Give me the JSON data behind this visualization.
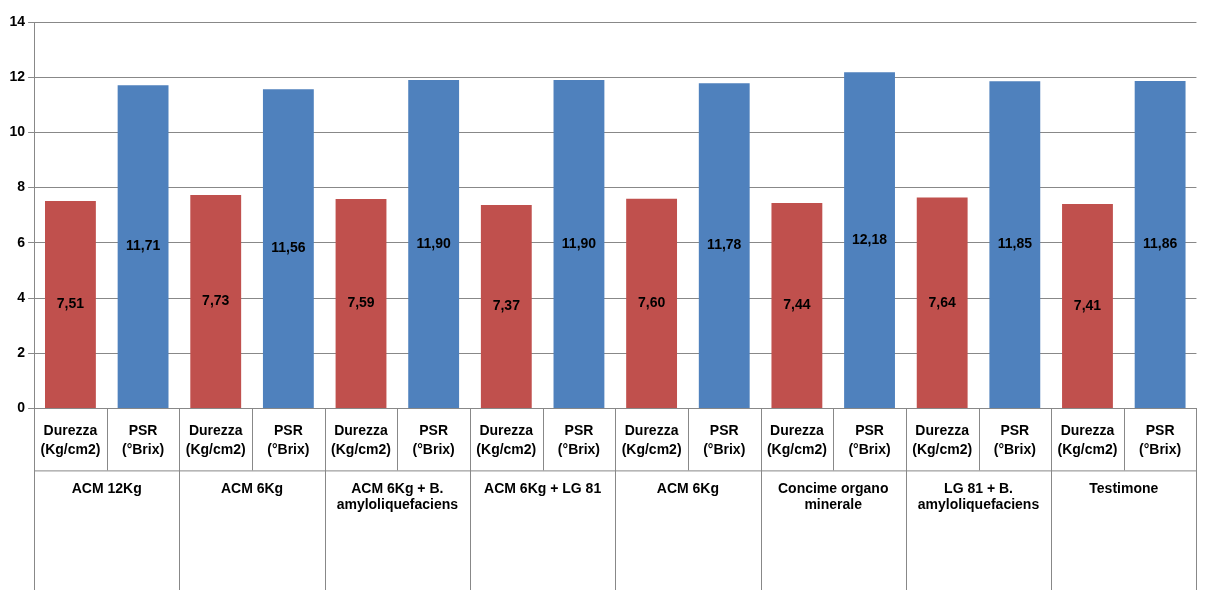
{
  "chart_data": {
    "type": "bar",
    "categories": [
      "ACM 12Kg",
      "ACM 6Kg",
      "ACM 6Kg + B. amyloliquefaciens",
      "ACM 6Kg + LG 81",
      "ACM 6Kg",
      "Concime organo minerale",
      "LG 81 + B. amyloliquefaciens",
      "Testimone"
    ],
    "series": [
      {
        "name": "Durezza (Kg/cm2)",
        "color": "#c0504d",
        "values": [
          7.51,
          7.73,
          7.59,
          7.37,
          7.6,
          7.44,
          7.64,
          7.41
        ],
        "value_labels": [
          "7,51",
          "7,73",
          "7,59",
          "7,37",
          "7,60",
          "7,44",
          "7,64",
          "7,41"
        ]
      },
      {
        "name": "PSR (°Brix)",
        "color": "#4f81bd",
        "values": [
          11.71,
          11.56,
          11.9,
          11.9,
          11.78,
          12.18,
          11.85,
          11.86
        ],
        "value_labels": [
          "11,71",
          "11,56",
          "11,90",
          "11,90",
          "11,78",
          "12,18",
          "11,85",
          "11,86"
        ]
      }
    ],
    "ylim": [
      0,
      14
    ],
    "yticks": [
      0,
      2,
      4,
      6,
      8,
      10,
      12,
      14
    ],
    "grid": "y",
    "legend": false
  }
}
